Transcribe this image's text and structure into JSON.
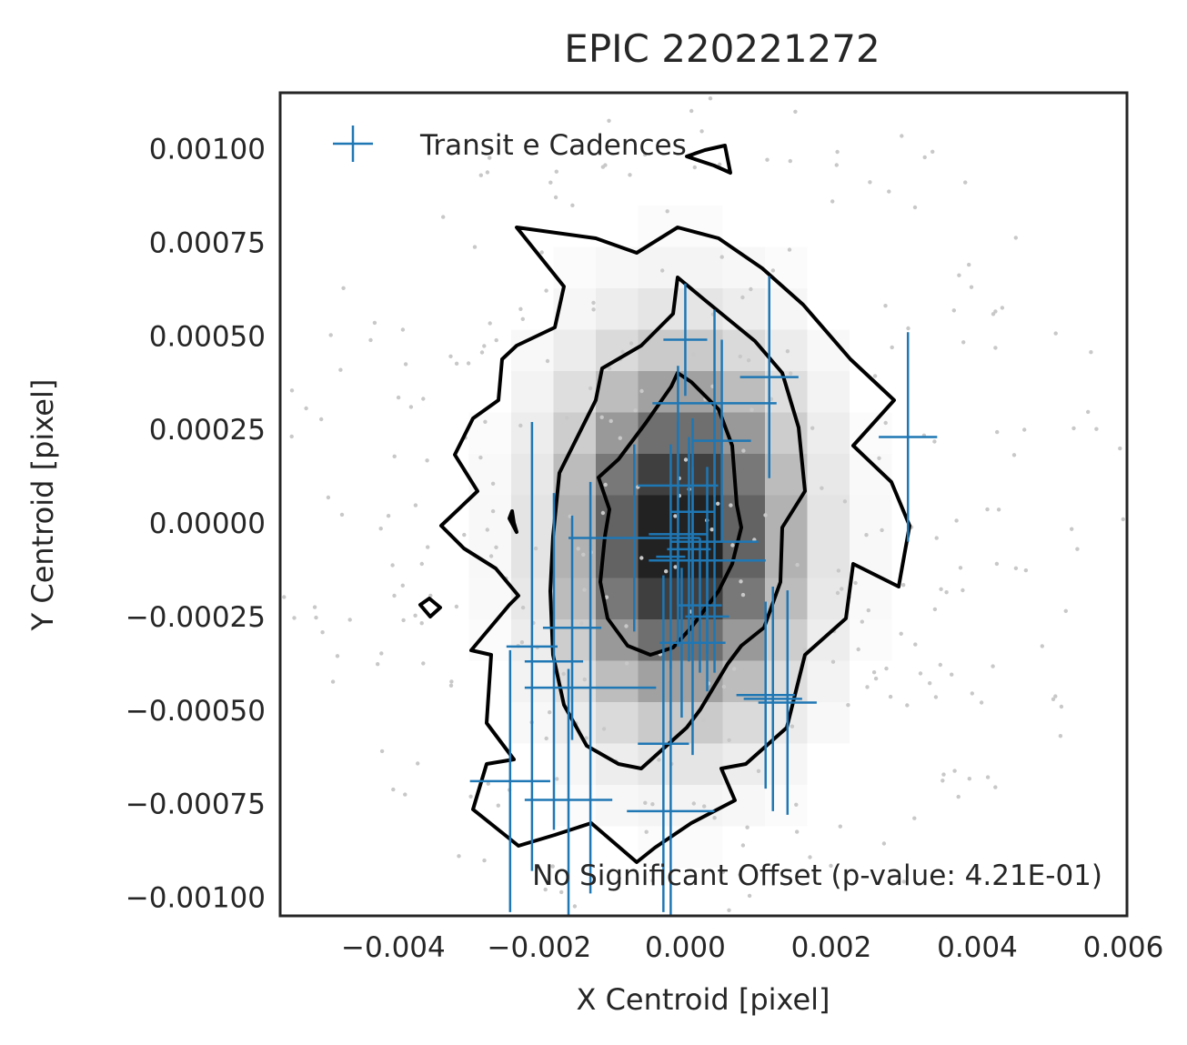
{
  "chart_data": {
    "type": "scatter",
    "title": "EPIC 220221272",
    "xlabel": "X Centroid [pixel]",
    "ylabel": "Y Centroid [pixel]",
    "xlim": [
      -0.00555,
      0.00605
    ],
    "ylim": [
      -0.00105,
      0.00115
    ],
    "xticks": [
      -0.004,
      -0.002,
      0.0,
      0.002,
      0.004,
      0.006
    ],
    "xtick_labels": [
      "−0.004",
      "−0.002",
      "0.000",
      "0.002",
      "0.004",
      "0.006"
    ],
    "yticks": [
      0.001,
      0.00075,
      0.0005,
      0.00025,
      0.0,
      -0.00025,
      -0.0005,
      -0.00075,
      -0.001
    ],
    "ytick_labels": [
      "0.00100",
      "0.00075",
      "0.00050",
      "0.00025",
      "0.00000",
      "−0.00025",
      "−0.00050",
      "−0.00075",
      "−0.00100"
    ],
    "grid": false,
    "legend": {
      "position": "upper-left",
      "entries": [
        {
          "label": "Transit e Cadences",
          "color": "#1f77b4"
        }
      ]
    },
    "annotation": "No Significant Offset (p-value: 4.21E-01)",
    "colors": {
      "series": "#1f77b4",
      "contour": "#000000",
      "background_points": "#c8c8c8",
      "axes": "#262626"
    },
    "background": "2D density histogram (greyscale) of out-of-transit centroids with contour lines",
    "series": [
      {
        "name": "Transit e Cadences",
        "points": [
          {
            "x": 0.00305,
            "y": 0.00023,
            "xerr": 0.0004,
            "yerr": 0.00028
          },
          {
            "x": 0.0,
            "y": 0.00049,
            "xerr": 0.0003,
            "yerr": 0.00015
          },
          {
            "x": 0.00115,
            "y": 0.00039,
            "xerr": 0.0004,
            "yerr": 0.00027
          },
          {
            "x": 0.0004,
            "y": 0.00032,
            "xerr": 0.00085,
            "yerr": 0.00025
          },
          {
            "x": 0.0005,
            "y": 0.00022,
            "xerr": 0.0004,
            "yerr": 0.00027
          },
          {
            "x": -0.0001,
            "y": 0.0001,
            "xerr": 0.00055,
            "yerr": 0.00032
          },
          {
            "x": 0.0001,
            "y": 3e-05,
            "xerr": 0.0003,
            "yerr": 0.00025
          },
          {
            "x": -0.0001,
            "y": -3e-05,
            "xerr": 0.0004,
            "yerr": 0.0003
          },
          {
            "x": 5e-05,
            "y": -7e-05,
            "xerr": 0.0003,
            "yerr": 0.0003
          },
          {
            "x": -0.0007,
            "y": -4e-05,
            "xerr": 0.0009,
            "yerr": 0.00025
          },
          {
            "x": 0.0004,
            "y": -5e-05,
            "xerr": 0.0006,
            "yerr": 0.00035
          },
          {
            "x": -0.0002,
            "y": -9e-05,
            "xerr": 0.0002,
            "yerr": 0.0003
          },
          {
            "x": 0.0001,
            "y": -0.0001,
            "xerr": 0.0003,
            "yerr": 0.00025
          },
          {
            "x": 0.0003,
            "y": -0.0001,
            "xerr": 0.0008,
            "yerr": 0.00025
          },
          {
            "x": 0.0002,
            "y": -0.00022,
            "xerr": 0.0003,
            "yerr": 0.00018
          },
          {
            "x": 0.0003,
            "y": -0.00025,
            "xerr": 0.0003,
            "yerr": 0.0002
          },
          {
            "x": -5e-05,
            "y": -0.00032,
            "xerr": 0.0003,
            "yerr": 0.0002
          },
          {
            "x": 0.0001,
            "y": -0.00032,
            "xerr": 0.00045,
            "yerr": 0.0003
          },
          {
            "x": -0.00155,
            "y": -0.00028,
            "xerr": 0.0004,
            "yerr": 0.0003
          },
          {
            "x": -0.0021,
            "y": -0.00033,
            "xerr": 0.00035,
            "yerr": 0.0006
          },
          {
            "x": -0.0018,
            "y": -0.00037,
            "xerr": 0.0004,
            "yerr": 0.00045
          },
          {
            "x": -0.0013,
            "y": -0.00044,
            "xerr": 0.0009,
            "yerr": 0.00055
          },
          {
            "x": 0.0011,
            "y": -0.00046,
            "xerr": 0.0004,
            "yerr": 0.00025
          },
          {
            "x": 0.0012,
            "y": -0.00047,
            "xerr": 0.0004,
            "yerr": 0.0003
          },
          {
            "x": 0.0014,
            "y": -0.00048,
            "xerr": 0.0004,
            "yerr": 0.0003
          },
          {
            "x": -0.0003,
            "y": -0.00059,
            "xerr": 0.00035,
            "yerr": 0.00045
          },
          {
            "x": -0.0024,
            "y": -0.00069,
            "xerr": 0.00055,
            "yerr": 0.00035
          },
          {
            "x": -0.0016,
            "y": -0.00074,
            "xerr": 0.0006,
            "yerr": 0.00035
          },
          {
            "x": -0.0002,
            "y": -0.00077,
            "xerr": 0.0006,
            "yerr": 0.0004
          }
        ]
      }
    ]
  }
}
